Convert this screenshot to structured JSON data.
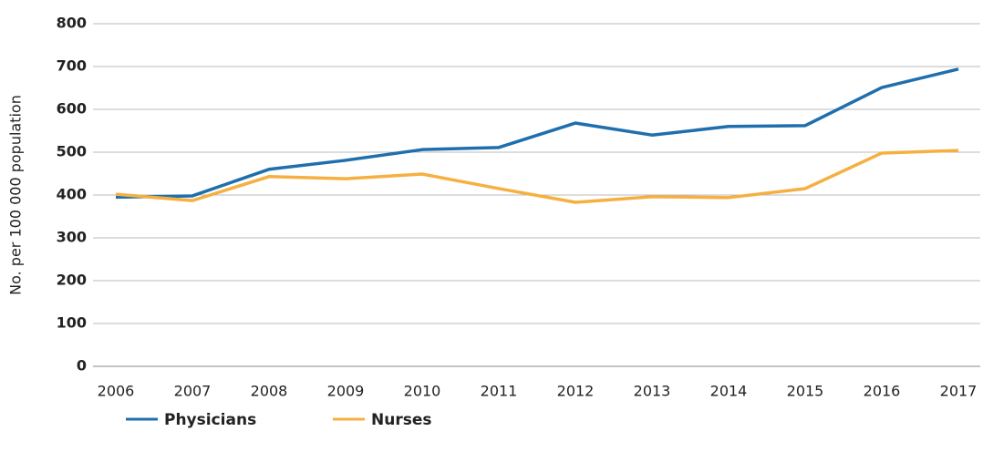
{
  "chart_data": {
    "type": "line",
    "y_label": "No. per 100 000 population",
    "categories": [
      "2006",
      "2007",
      "2008",
      "2009",
      "2010",
      "2011",
      "2012",
      "2013",
      "2014",
      "2015",
      "2016",
      "2017"
    ],
    "series": [
      {
        "name": "Physicians",
        "color": "#1f6fae",
        "values": [
          395,
          398,
          460,
          481,
          506,
          511,
          568,
          540,
          560,
          562,
          651,
          694
        ]
      },
      {
        "name": "Nurses",
        "color": "#f5b041",
        "values": [
          402,
          387,
          443,
          438,
          449,
          415,
          383,
          396,
          394,
          415,
          498,
          504
        ]
      }
    ],
    "ylim": [
      0,
      800
    ],
    "yticks": [
      0,
      100,
      200,
      300,
      400,
      500,
      600,
      700,
      800
    ],
    "grid": true,
    "legend": "bottom"
  }
}
